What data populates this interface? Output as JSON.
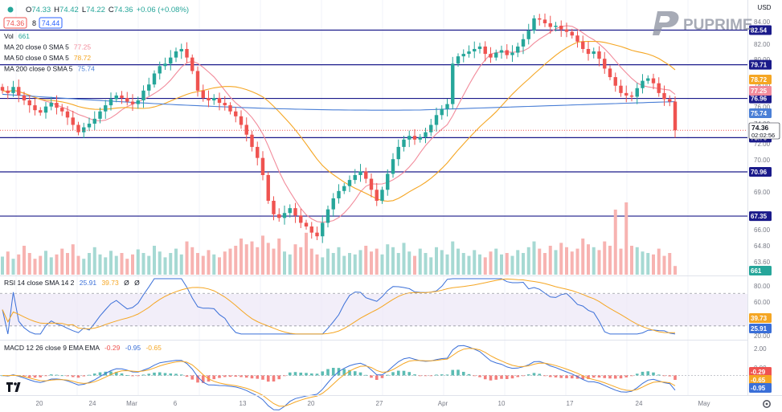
{
  "header": {
    "ohlc": [
      {
        "key": "O",
        "value": "74.33"
      },
      {
        "key": "H",
        "value": "74.42"
      },
      {
        "key": "L",
        "value": "74.22"
      },
      {
        "key": "C",
        "value": "74.36"
      }
    ],
    "change": "+0.06 (+0.08%)",
    "bid": "74.36",
    "spread": "8",
    "ask": "74.44",
    "currency": "USD"
  },
  "brand": {
    "name": "PUPRIME"
  },
  "colors": {
    "up": "#26a69a",
    "down": "#ef5350",
    "ma20": "#f28b9b",
    "ma50": "#f5a623",
    "ma200": "#4a7fd6",
    "level": "#1a1a8a",
    "rsi": "#3a6fd8",
    "rsi_sma": "#f5a623",
    "macd": "#3a6fd8",
    "signal": "#f5a623"
  },
  "legend": [
    {
      "name": "Vol",
      "value": "661",
      "color": "#26a69a"
    },
    {
      "name": "MA 20 close 0 SMA 5",
      "value": "77.25",
      "color": "#f28b9b"
    },
    {
      "name": "MA 50 close 0 SMA 5",
      "value": "78.72",
      "color": "#f5a623"
    },
    {
      "name": "MA 200 close 0 SMA 5",
      "value": "75.74",
      "color": "#4a7fd6"
    }
  ],
  "rsi_legend": {
    "name": "RSI 14 close SMA 14 2",
    "v1": "25.91",
    "v2": "39.73",
    "v3": "Ø",
    "v4": "Ø"
  },
  "macd_legend": {
    "name": "MACD 12 26 close 9 EMA EMA",
    "v1": "-0.29",
    "v2": "-0.95",
    "v3": "-0.65"
  },
  "chart_data": [
    {
      "type": "candlestick",
      "ylim": [
        62.5,
        85.0
      ],
      "price_ticks": [
        "84.00",
        "82.00",
        "80.00",
        "78.00",
        "76.00",
        "74.00",
        "72.00",
        "70.00",
        "69.00",
        "66.00",
        "64.80",
        "63.60"
      ],
      "levels": [
        82.54,
        79.71,
        76.96,
        73.76,
        70.96,
        67.35
      ],
      "level_labels": [
        "82.54",
        "79.71",
        "76.96",
        "73.76",
        "70.96",
        "67.35"
      ],
      "price_tags": [
        {
          "label": "78.72",
          "color": "#f5a623",
          "value": 78.72
        },
        {
          "label": "77.25",
          "color": "#f28b9b",
          "value": 77.25
        },
        {
          "label": "75.74",
          "color": "#4a7fd6",
          "value": 75.74
        }
      ],
      "current": {
        "price": "74.36",
        "countdown": "02:02:56",
        "value": 74.36
      },
      "x_labels": [
        "20",
        "24",
        "Mar",
        "6",
        "13",
        "20",
        "27",
        "Apr",
        "10",
        "17",
        "24",
        "May"
      ],
      "closes": [
        77.6,
        77.4,
        77.9,
        77.2,
        76.8,
        76.4,
        76.0,
        75.8,
        76.3,
        76.6,
        76.2,
        75.9,
        75.4,
        74.8,
        74.2,
        74.6,
        74.9,
        75.3,
        75.9,
        76.4,
        76.9,
        77.2,
        77.0,
        76.7,
        76.5,
        76.8,
        77.6,
        78.1,
        79.0,
        79.6,
        79.8,
        80.3,
        80.8,
        81.0,
        80.3,
        79.2,
        77.6,
        77.0,
        76.8,
        77.0,
        76.6,
        76.4,
        75.9,
        75.5,
        74.8,
        74.0,
        73.0,
        72.1,
        70.7,
        68.6,
        67.5,
        67.2,
        67.6,
        68.0,
        67.4,
        66.8,
        66.5,
        66.0,
        65.7,
        66.8,
        67.9,
        68.8,
        69.4,
        69.8,
        70.3,
        70.7,
        71.0,
        70.4,
        69.5,
        68.6,
        69.5,
        70.8,
        72.0,
        73.0,
        73.6,
        73.9,
        73.6,
        73.8,
        74.2,
        74.8,
        75.6,
        76.1,
        76.5,
        79.8,
        80.4,
        80.6,
        80.8,
        81.0,
        81.2,
        80.6,
        80.3,
        80.7,
        80.9,
        80.5,
        80.7,
        81.2,
        81.8,
        82.5,
        83.5,
        83.4,
        83.1,
        82.8,
        82.9,
        82.6,
        82.4,
        82.1,
        81.6,
        81.0,
        80.6,
        80.8,
        80.2,
        79.4,
        78.7,
        78.0,
        77.4,
        77.2,
        77.1,
        77.8,
        78.4,
        78.6,
        78.2,
        77.4,
        76.9,
        76.7,
        74.36
      ],
      "volumes": [
        0.25,
        0.32,
        0.22,
        0.28,
        0.4,
        0.3,
        0.22,
        0.26,
        0.33,
        0.24,
        0.28,
        0.36,
        0.3,
        0.42,
        0.26,
        0.22,
        0.3,
        0.38,
        0.28,
        0.24,
        0.33,
        0.26,
        0.3,
        0.22,
        0.28,
        0.35,
        0.3,
        0.26,
        0.4,
        0.32,
        0.24,
        0.3,
        0.36,
        0.28,
        0.46,
        0.38,
        0.3,
        0.26,
        0.34,
        0.28,
        0.24,
        0.32,
        0.36,
        0.4,
        0.5,
        0.42,
        0.46,
        0.38,
        0.54,
        0.44,
        0.36,
        0.5,
        0.32,
        0.28,
        0.42,
        0.38,
        0.58,
        0.36,
        0.28,
        0.24,
        0.36,
        0.3,
        0.38,
        0.26,
        0.3,
        0.28,
        0.34,
        0.4,
        0.32,
        0.36,
        0.28,
        0.42,
        0.38,
        0.3,
        0.44,
        0.32,
        0.26,
        0.36,
        0.3,
        0.24,
        0.38,
        0.34,
        0.28,
        0.46,
        0.36,
        0.3,
        0.26,
        0.34,
        0.28,
        0.24,
        0.32,
        0.36,
        0.28,
        0.3,
        0.26,
        0.34,
        0.3,
        0.38,
        0.46,
        0.36,
        0.3,
        0.4,
        0.34,
        0.44,
        0.38,
        0.32,
        0.36,
        0.5,
        0.42,
        0.38,
        0.34,
        0.46,
        0.4,
        0.9,
        0.36,
        1.0,
        0.4,
        0.38,
        0.32,
        0.3,
        0.28,
        0.36,
        0.26,
        0.3,
        0.12
      ]
    },
    {
      "type": "line",
      "name": "RSI",
      "ylim": [
        15,
        90
      ],
      "y_ticks": [
        "80.00",
        "60.00",
        "20.00"
      ],
      "band": [
        30,
        70
      ],
      "tags": [
        {
          "label": "39.73",
          "color": "#f5a623",
          "value": 39.73
        },
        {
          "label": "25.91",
          "color": "#3a6fd8",
          "value": 25.91
        }
      ]
    },
    {
      "type": "line",
      "name": "MACD",
      "ylim": [
        -1.25,
        2.3
      ],
      "y_ticks": [
        "2.00",
        "0.00"
      ],
      "tags": [
        {
          "label": "-0.29",
          "color": "#ef5350",
          "value": -0.29
        },
        {
          "label": "-0.65",
          "color": "#f5a623",
          "value": -0.65
        },
        {
          "label": "-0.95",
          "color": "#3a6fd8",
          "value": -0.95
        }
      ]
    }
  ]
}
